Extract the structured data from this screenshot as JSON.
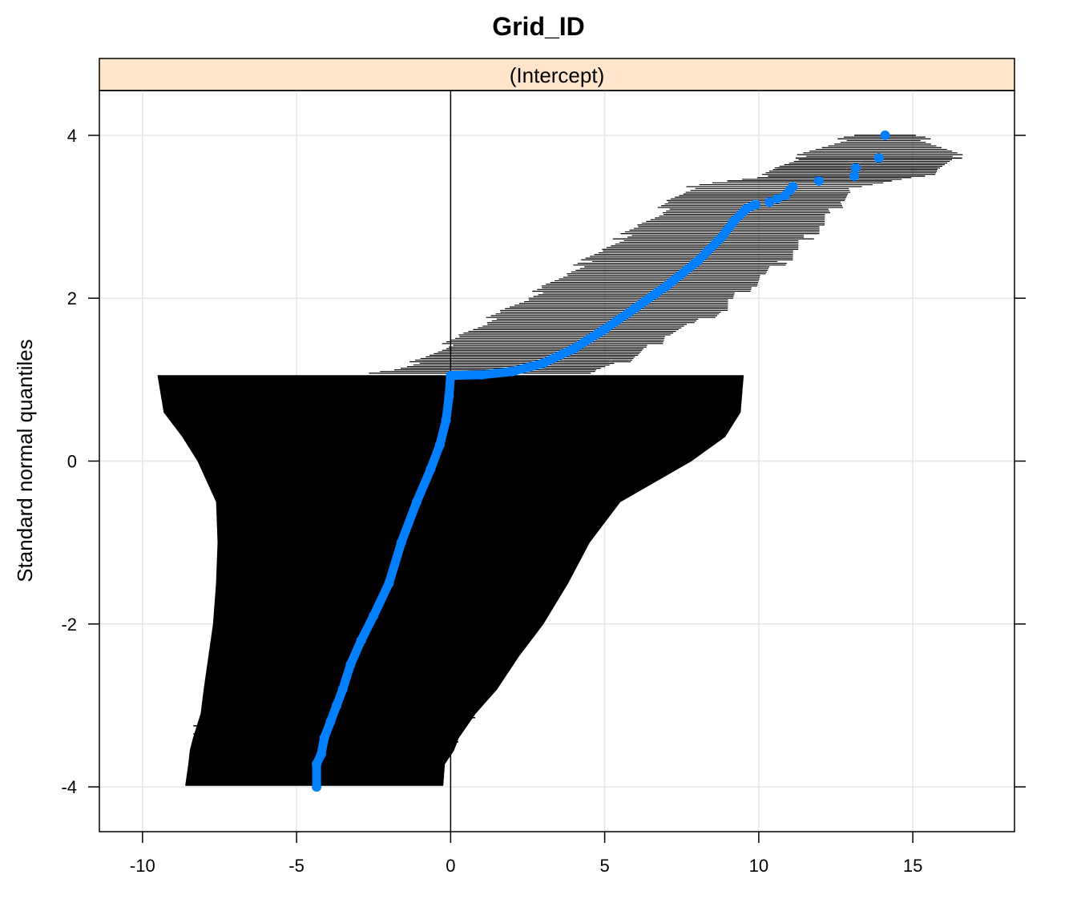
{
  "chart_data": {
    "type": "scatter",
    "title": "Grid_ID",
    "strip_label": "(Intercept)",
    "xlabel": "",
    "ylabel": "Standard normal quantiles",
    "xlim": [
      -11.4,
      18.3
    ],
    "ylim": [
      -4.55,
      4.55
    ],
    "x_ticks": [
      -10,
      -5,
      0,
      5,
      10,
      15
    ],
    "y_ticks": [
      -4,
      -2,
      0,
      2,
      4
    ],
    "grid": true,
    "reference_line_x": 0,
    "colors": {
      "points": "#0080ff",
      "intervals": "#000000",
      "strip_background": "#ffe5cc",
      "grid": "#e6e6e6"
    },
    "quantile_curve": [
      {
        "x": -4.35,
        "y": -4.0
      },
      {
        "x": -4.35,
        "y": -3.72
      },
      {
        "x": -4.2,
        "y": -3.6
      },
      {
        "x": -4.1,
        "y": -3.4
      },
      {
        "x": -3.9,
        "y": -3.2
      },
      {
        "x": -3.7,
        "y": -3.0
      },
      {
        "x": -3.5,
        "y": -2.8
      },
      {
        "x": -3.25,
        "y": -2.5
      },
      {
        "x": -2.9,
        "y": -2.2
      },
      {
        "x": -2.5,
        "y": -1.9
      },
      {
        "x": -2.0,
        "y": -1.5
      },
      {
        "x": -1.6,
        "y": -1.0
      },
      {
        "x": -1.1,
        "y": -0.5
      },
      {
        "x": -0.65,
        "y": -0.1
      },
      {
        "x": -0.35,
        "y": 0.2
      },
      {
        "x": -0.15,
        "y": 0.5
      },
      {
        "x": -0.05,
        "y": 0.8
      },
      {
        "x": 0.0,
        "y": 1.05
      },
      {
        "x": 1.0,
        "y": 1.06
      },
      {
        "x": 2.0,
        "y": 1.1
      },
      {
        "x": 3.0,
        "y": 1.2
      },
      {
        "x": 4.0,
        "y": 1.38
      },
      {
        "x": 5.0,
        "y": 1.62
      },
      {
        "x": 6.0,
        "y": 1.88
      },
      {
        "x": 7.0,
        "y": 2.15
      },
      {
        "x": 8.0,
        "y": 2.45
      },
      {
        "x": 8.8,
        "y": 2.75
      },
      {
        "x": 9.2,
        "y": 2.95
      },
      {
        "x": 9.6,
        "y": 3.1
      },
      {
        "x": 9.9,
        "y": 3.15
      }
    ],
    "outlier_points": [
      {
        "x": 10.35,
        "y": 3.18
      },
      {
        "x": 10.6,
        "y": 3.22
      },
      {
        "x": 10.85,
        "y": 3.26
      },
      {
        "x": 11.0,
        "y": 3.32
      },
      {
        "x": 11.1,
        "y": 3.37
      },
      {
        "x": 11.95,
        "y": 3.44
      },
      {
        "x": 13.1,
        "y": 3.5
      },
      {
        "x": 13.15,
        "y": 3.6
      },
      {
        "x": 13.9,
        "y": 3.72
      },
      {
        "x": 14.1,
        "y": 4.0
      }
    ],
    "interval_envelope": [
      {
        "y": -3.98,
        "lo": -8.6,
        "hi": -0.25
      },
      {
        "y": -3.72,
        "lo": -8.5,
        "hi": -0.2
      },
      {
        "y": -3.55,
        "lo": -8.45,
        "hi": 0.1
      },
      {
        "y": -3.4,
        "lo": -8.35,
        "hi": 0.25
      },
      {
        "y": -3.1,
        "lo": -8.1,
        "hi": 0.8
      },
      {
        "y": -2.8,
        "lo": -8.0,
        "hi": 1.5
      },
      {
        "y": -2.4,
        "lo": -7.85,
        "hi": 2.2
      },
      {
        "y": -2.0,
        "lo": -7.7,
        "hi": 3.0
      },
      {
        "y": -1.5,
        "lo": -7.6,
        "hi": 3.8
      },
      {
        "y": -1.0,
        "lo": -7.55,
        "hi": 4.5
      },
      {
        "y": -0.5,
        "lo": -7.6,
        "hi": 5.5
      },
      {
        "y": 0.0,
        "lo": -8.2,
        "hi": 7.8
      },
      {
        "y": 0.3,
        "lo": -8.7,
        "hi": 8.9
      },
      {
        "y": 0.6,
        "lo": -9.3,
        "hi": 9.4
      },
      {
        "y": 1.05,
        "lo": -9.5,
        "hi": 9.5
      }
    ],
    "upper_intervals": [
      {
        "y": 1.08,
        "lo": -2.4,
        "hi": 4.3
      },
      {
        "y": 1.12,
        "lo": -1.8,
        "hi": 4.7
      },
      {
        "y": 1.2,
        "lo": -1.2,
        "hi": 5.5
      },
      {
        "y": 1.3,
        "lo": -0.6,
        "hi": 6.0
      },
      {
        "y": 1.4,
        "lo": -0.2,
        "hi": 6.5
      },
      {
        "y": 1.55,
        "lo": 0.4,
        "hi": 7.0
      },
      {
        "y": 1.7,
        "lo": 1.1,
        "hi": 8.0
      },
      {
        "y": 1.85,
        "lo": 1.8,
        "hi": 8.8
      },
      {
        "y": 2.0,
        "lo": 2.5,
        "hi": 9.2
      },
      {
        "y": 2.15,
        "lo": 3.2,
        "hi": 9.7
      },
      {
        "y": 2.3,
        "lo": 3.8,
        "hi": 10.2
      },
      {
        "y": 2.45,
        "lo": 4.4,
        "hi": 10.8
      },
      {
        "y": 2.6,
        "lo": 5.0,
        "hi": 11.2
      },
      {
        "y": 2.75,
        "lo": 5.6,
        "hi": 11.6
      },
      {
        "y": 2.9,
        "lo": 6.2,
        "hi": 12.0
      },
      {
        "y": 3.05,
        "lo": 6.8,
        "hi": 12.4
      },
      {
        "y": 3.2,
        "lo": 7.2,
        "hi": 12.6
      },
      {
        "y": 3.3,
        "lo": 7.6,
        "hi": 13.0
      },
      {
        "y": 3.37,
        "lo": 7.9,
        "hi": 13.1
      },
      {
        "y": 3.44,
        "lo": 9.0,
        "hi": 14.3
      },
      {
        "y": 3.5,
        "lo": 10.3,
        "hi": 15.4
      },
      {
        "y": 3.6,
        "lo": 10.6,
        "hi": 15.8
      },
      {
        "y": 3.72,
        "lo": 11.2,
        "hi": 16.6
      },
      {
        "y": 4.0,
        "lo": 13.1,
        "hi": 15.1
      }
    ]
  }
}
